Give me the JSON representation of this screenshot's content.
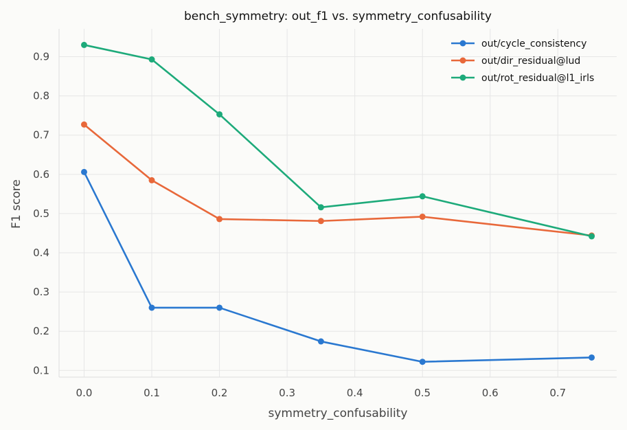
{
  "chart_data": {
    "type": "line",
    "title": "bench_symmetry: out_f1 vs. symmetry_confusability",
    "xlabel": "symmetry_confusability",
    "ylabel": "F1 score",
    "x": [
      0.0,
      0.1,
      0.2,
      0.35,
      0.5,
      0.75
    ],
    "xlim": [
      -0.037,
      0.787
    ],
    "ylim": [
      0.083,
      0.971
    ],
    "xticks": [
      0.0,
      0.1,
      0.2,
      0.3,
      0.4,
      0.5,
      0.6,
      0.7
    ],
    "xtick_labels": [
      "0.0",
      "0.1",
      "0.2",
      "0.3",
      "0.4",
      "0.5",
      "0.6",
      "0.7"
    ],
    "yticks": [
      0.1,
      0.2,
      0.3,
      0.4,
      0.5,
      0.6,
      0.7,
      0.8,
      0.9
    ],
    "ytick_labels": [
      "0.1",
      "0.2",
      "0.3",
      "0.4",
      "0.5",
      "0.6",
      "0.7",
      "0.8",
      "0.9"
    ],
    "grid": true,
    "legend_position": "top-right",
    "series": [
      {
        "name": "out/cycle_consistency",
        "color": "#2a78d0",
        "values": [
          0.606,
          0.26,
          0.26,
          0.174,
          0.122,
          0.133
        ]
      },
      {
        "name": "out/dir_residual@lud",
        "color": "#e8683a",
        "values": [
          0.727,
          0.585,
          0.486,
          0.481,
          0.492,
          0.444
        ]
      },
      {
        "name": "out/rot_residual@l1_irls",
        "color": "#1daa7a",
        "values": [
          0.93,
          0.893,
          0.753,
          0.516,
          0.544,
          0.442
        ]
      }
    ]
  }
}
